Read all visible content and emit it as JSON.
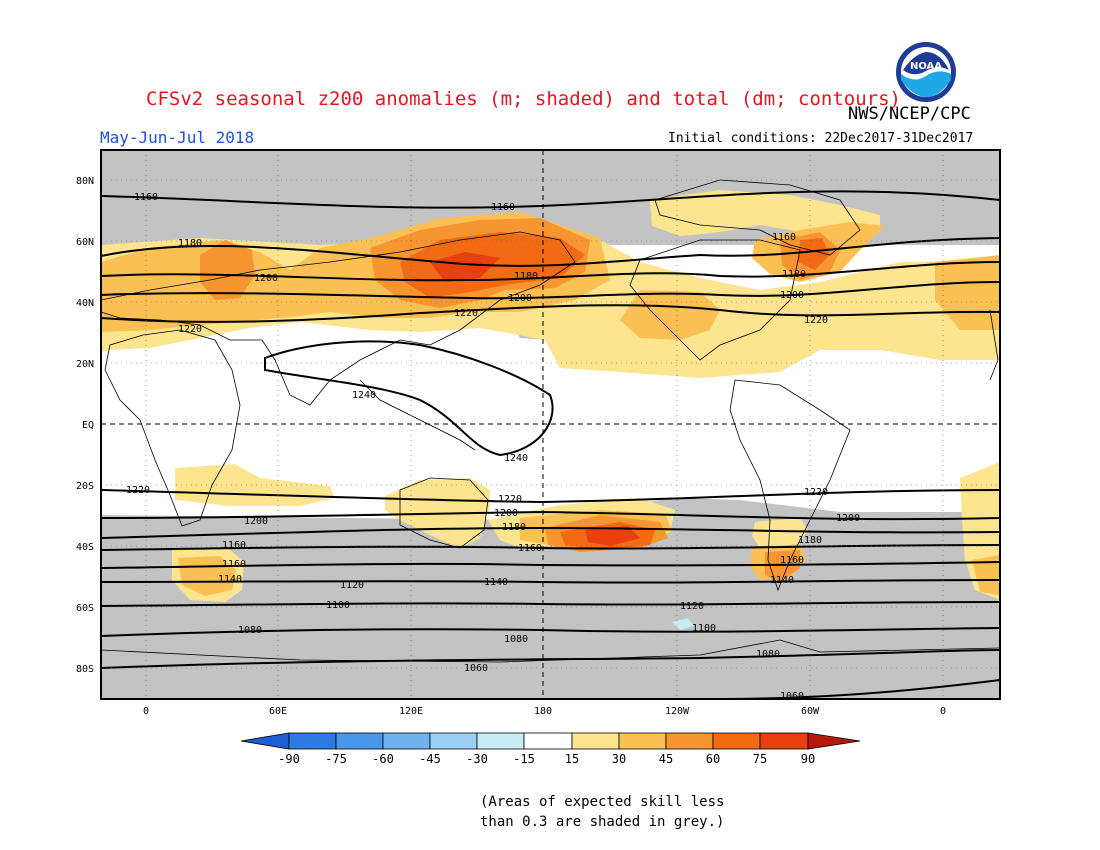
{
  "header": {
    "title": "CFSv2 seasonal z200 anomalies (m; shaded) and total (dm; contours)",
    "agency": "NWS/NCEP/CPC",
    "period": "May-Jun-Jul 2018",
    "initial_conditions": "Initial conditions: 22Dec2017-31Dec2017",
    "logo_text": "NOAA"
  },
  "axes": {
    "lat_labels": [
      "80N",
      "60N",
      "40N",
      "20N",
      "EQ",
      "20S",
      "40S",
      "60S",
      "80S"
    ],
    "lon_labels": [
      "0",
      "60E",
      "120E",
      "180",
      "120W",
      "60W",
      "0"
    ]
  },
  "contour_labels": [
    "1160",
    "1160",
    "1180",
    "1200",
    "1220",
    "1180",
    "1200",
    "1220",
    "1160",
    "1180",
    "1200",
    "1220",
    "1240",
    "1240",
    "1220",
    "1200",
    "1220",
    "1200",
    "1180",
    "1160",
    "1220",
    "1200",
    "1180",
    "1160",
    "1160",
    "1140",
    "1120",
    "1140",
    "1160",
    "1140",
    "1100",
    "1120",
    "1100",
    "1080",
    "1080",
    "1080",
    "1060",
    "1060"
  ],
  "colorbar": {
    "ticks": [
      "-90",
      "-75",
      "-60",
      "-45",
      "-30",
      "-15",
      "15",
      "30",
      "45",
      "60",
      "75",
      "90"
    ],
    "colors": [
      "#1f5fd4",
      "#2f7ae0",
      "#4a96e8",
      "#6fb2f0",
      "#9ad0f5",
      "#c5ecf7",
      "#ffffff",
      "#fde48f",
      "#fbc053",
      "#f79530",
      "#f26a14",
      "#e9400e",
      "#b81a0a"
    ]
  },
  "colors": {
    "title": "#e8141e",
    "period": "#1e50e6",
    "low_skill_grey": "#c3c3c3"
  },
  "footnote": {
    "line1": "(Areas of expected skill less",
    "line2": "than 0.3 are shaded in grey.)"
  }
}
